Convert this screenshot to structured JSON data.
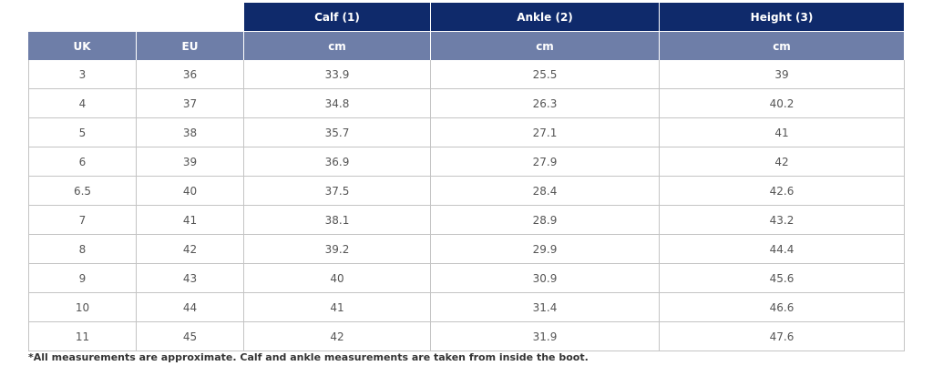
{
  "table": {
    "group_header": [
      "Calf (1)",
      "Ankle (2)",
      "Height (3)"
    ],
    "header": [
      "UK",
      "EU",
      "cm",
      "cm",
      "cm"
    ],
    "rows": [
      [
        "3",
        "36",
        "33.9",
        "25.5",
        "39"
      ],
      [
        "4",
        "37",
        "34.8",
        "26.3",
        "40.2"
      ],
      [
        "5",
        "38",
        "35.7",
        "27.1",
        "41"
      ],
      [
        "6",
        "39",
        "36.9",
        "27.9",
        "42"
      ],
      [
        "6.5",
        "40",
        "37.5",
        "28.4",
        "42.6"
      ],
      [
        "7",
        "41",
        "38.1",
        "28.9",
        "43.2"
      ],
      [
        "8",
        "42",
        "39.2",
        "29.9",
        "44.4"
      ],
      [
        "9",
        "43",
        "40",
        "30.9",
        "45.6"
      ],
      [
        "10",
        "44",
        "41",
        "31.4",
        "46.6"
      ],
      [
        "11",
        "45",
        "42",
        "31.9",
        "47.6"
      ]
    ]
  },
  "footnote": "*All measurements are approximate. Calf and ankle measurements are taken from inside the boot."
}
